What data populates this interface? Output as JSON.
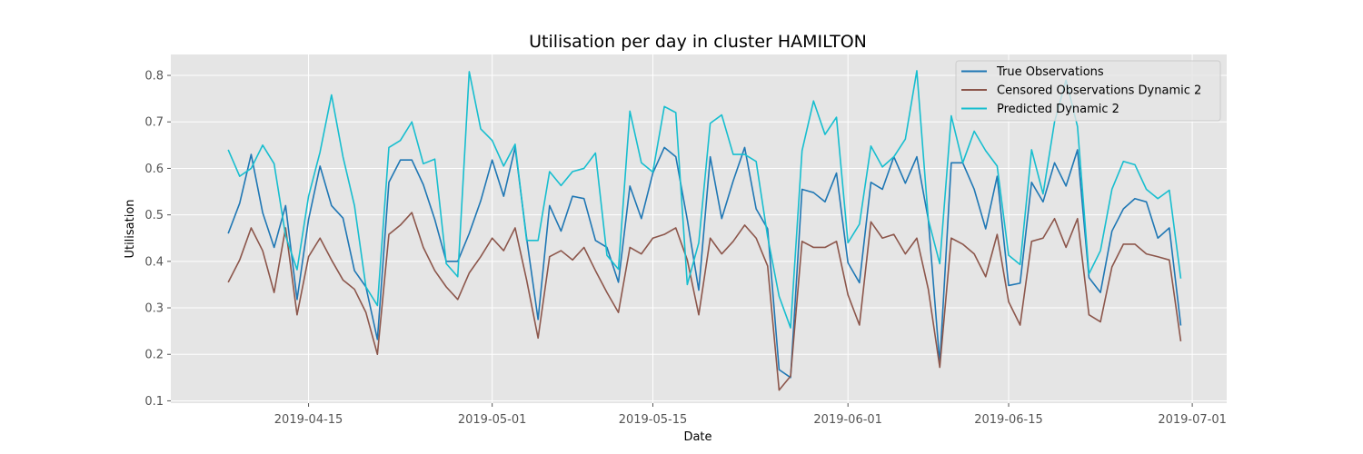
{
  "chart_data": {
    "type": "line",
    "title": "Utilisation per day in cluster HAMILTON",
    "xlabel": "Date",
    "ylabel": "Utilisation",
    "x_start": "2019-04-08",
    "x_end": "2019-06-30",
    "xlim": [
      "2019-04-03",
      "2019-07-04"
    ],
    "ylim": [
      0.095,
      0.845
    ],
    "x_ticks": [
      "2019-04-15",
      "2019-05-01",
      "2019-05-15",
      "2019-06-01",
      "2019-06-15",
      "2019-07-01"
    ],
    "y_ticks": [
      0.1,
      0.2,
      0.3,
      0.4,
      0.5,
      0.6,
      0.7,
      0.8
    ],
    "grid": true,
    "legend_position": "top-right",
    "series": [
      {
        "name": "True Observations",
        "color": "#1f77b4",
        "values": [
          0.46,
          0.525,
          0.63,
          0.505,
          0.43,
          0.52,
          0.318,
          0.49,
          0.605,
          0.52,
          0.493,
          0.38,
          0.345,
          0.232,
          0.57,
          0.618,
          0.618,
          0.565,
          0.49,
          0.4,
          0.4,
          0.46,
          0.53,
          0.618,
          0.54,
          0.645,
          0.45,
          0.275,
          0.52,
          0.465,
          0.54,
          0.535,
          0.445,
          0.43,
          0.355,
          0.562,
          0.492,
          0.59,
          0.645,
          0.625,
          0.49,
          0.338,
          0.625,
          0.492,
          0.573,
          0.645,
          0.513,
          0.47,
          0.167,
          0.15,
          0.555,
          0.548,
          0.528,
          0.59,
          0.397,
          0.354,
          0.57,
          0.555,
          0.625,
          0.568,
          0.625,
          0.49,
          0.18,
          0.612,
          0.612,
          0.555,
          0.47,
          0.583,
          0.348,
          0.353,
          0.57,
          0.528,
          0.612,
          0.562,
          0.64,
          0.365,
          0.333,
          0.465,
          0.513,
          0.535,
          0.528,
          0.45,
          0.472,
          0.262
        ]
      },
      {
        "name": "Censored Observations Dynamic 2",
        "color": "#8c564b",
        "values": [
          0.355,
          0.403,
          0.472,
          0.423,
          0.333,
          0.472,
          0.285,
          0.41,
          0.45,
          0.403,
          0.36,
          0.34,
          0.29,
          0.2,
          0.458,
          0.478,
          0.505,
          0.43,
          0.38,
          0.345,
          0.318,
          0.375,
          0.41,
          0.45,
          0.423,
          0.472,
          0.36,
          0.235,
          0.41,
          0.423,
          0.403,
          0.43,
          0.38,
          0.333,
          0.29,
          0.43,
          0.416,
          0.45,
          0.458,
          0.472,
          0.403,
          0.285,
          0.45,
          0.416,
          0.443,
          0.478,
          0.45,
          0.39,
          0.123,
          0.153,
          0.443,
          0.43,
          0.43,
          0.443,
          0.328,
          0.263,
          0.485,
          0.45,
          0.458,
          0.416,
          0.45,
          0.34,
          0.172,
          0.45,
          0.437,
          0.416,
          0.367,
          0.458,
          0.313,
          0.263,
          0.443,
          0.45,
          0.492,
          0.43,
          0.492,
          0.285,
          0.27,
          0.388,
          0.437,
          0.437,
          0.416,
          0.41,
          0.403,
          0.228
        ]
      },
      {
        "name": "Predicted Dynamic 2",
        "color": "#17becf",
        "values": [
          0.64,
          0.583,
          0.6,
          0.65,
          0.61,
          0.455,
          0.382,
          0.54,
          0.635,
          0.758,
          0.625,
          0.52,
          0.345,
          0.305,
          0.645,
          0.66,
          0.7,
          0.61,
          0.62,
          0.395,
          0.367,
          0.808,
          0.685,
          0.66,
          0.605,
          0.652,
          0.445,
          0.445,
          0.593,
          0.563,
          0.593,
          0.6,
          0.633,
          0.413,
          0.383,
          0.723,
          0.612,
          0.592,
          0.733,
          0.72,
          0.35,
          0.44,
          0.697,
          0.715,
          0.63,
          0.63,
          0.615,
          0.453,
          0.325,
          0.257,
          0.638,
          0.745,
          0.673,
          0.71,
          0.44,
          0.48,
          0.648,
          0.603,
          0.625,
          0.663,
          0.81,
          0.49,
          0.395,
          0.713,
          0.612,
          0.68,
          0.638,
          0.605,
          0.413,
          0.393,
          0.64,
          0.545,
          0.7,
          0.79,
          0.69,
          0.373,
          0.423,
          0.555,
          0.615,
          0.608,
          0.555,
          0.535,
          0.553,
          0.363
        ]
      }
    ]
  }
}
